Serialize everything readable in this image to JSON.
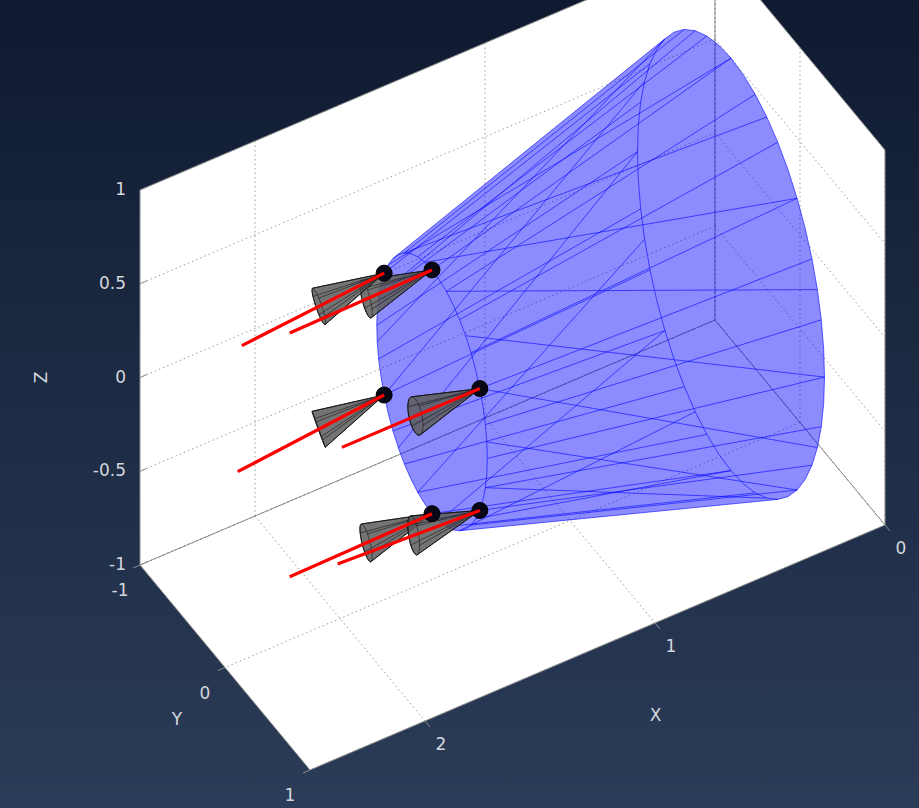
{
  "chart_data": {
    "type": "surface3d",
    "x_label": "X",
    "y_label": "Y",
    "z_label": "Z",
    "xlim": [
      0,
      2.5
    ],
    "ylim": [
      -1,
      1
    ],
    "zlim": [
      -1,
      1
    ],
    "xticks": [
      0,
      1,
      2
    ],
    "yticks": [
      -1,
      0,
      1
    ],
    "zticks": [
      -1,
      -0.5,
      0,
      0.5,
      1
    ],
    "grid": true,
    "cone": {
      "x": [
        0.3,
        1.6
      ],
      "radius": [
        1.1,
        0.65
      ],
      "color": "#0000ff"
    },
    "thrusters": [
      {
        "position": [
          1.6,
          0.563,
          0.325
        ],
        "direction": [
          0.6,
          0,
          0
        ],
        "color": "#ff0000"
      },
      {
        "position": [
          1.6,
          0,
          0.65
        ],
        "direction": [
          0.6,
          -0.05,
          -0.05
        ],
        "color": "#ff0000"
      },
      {
        "position": [
          1.6,
          -0.563,
          0.325
        ],
        "direction": [
          0.6,
          -0.05,
          -0.1
        ],
        "color": "#ff0000"
      },
      {
        "position": [
          1.6,
          -0.563,
          -0.325
        ],
        "direction": [
          0.6,
          -0.1,
          -0.15
        ],
        "color": "#ff0000"
      },
      {
        "position": [
          1.6,
          0,
          -0.65
        ],
        "direction": [
          0.6,
          -0.05,
          -0.05
        ],
        "color": "#ff0000"
      },
      {
        "position": [
          1.6,
          0.563,
          -0.325
        ],
        "direction": [
          0.6,
          -0.05,
          0
        ],
        "color": "#ff0000"
      }
    ]
  }
}
